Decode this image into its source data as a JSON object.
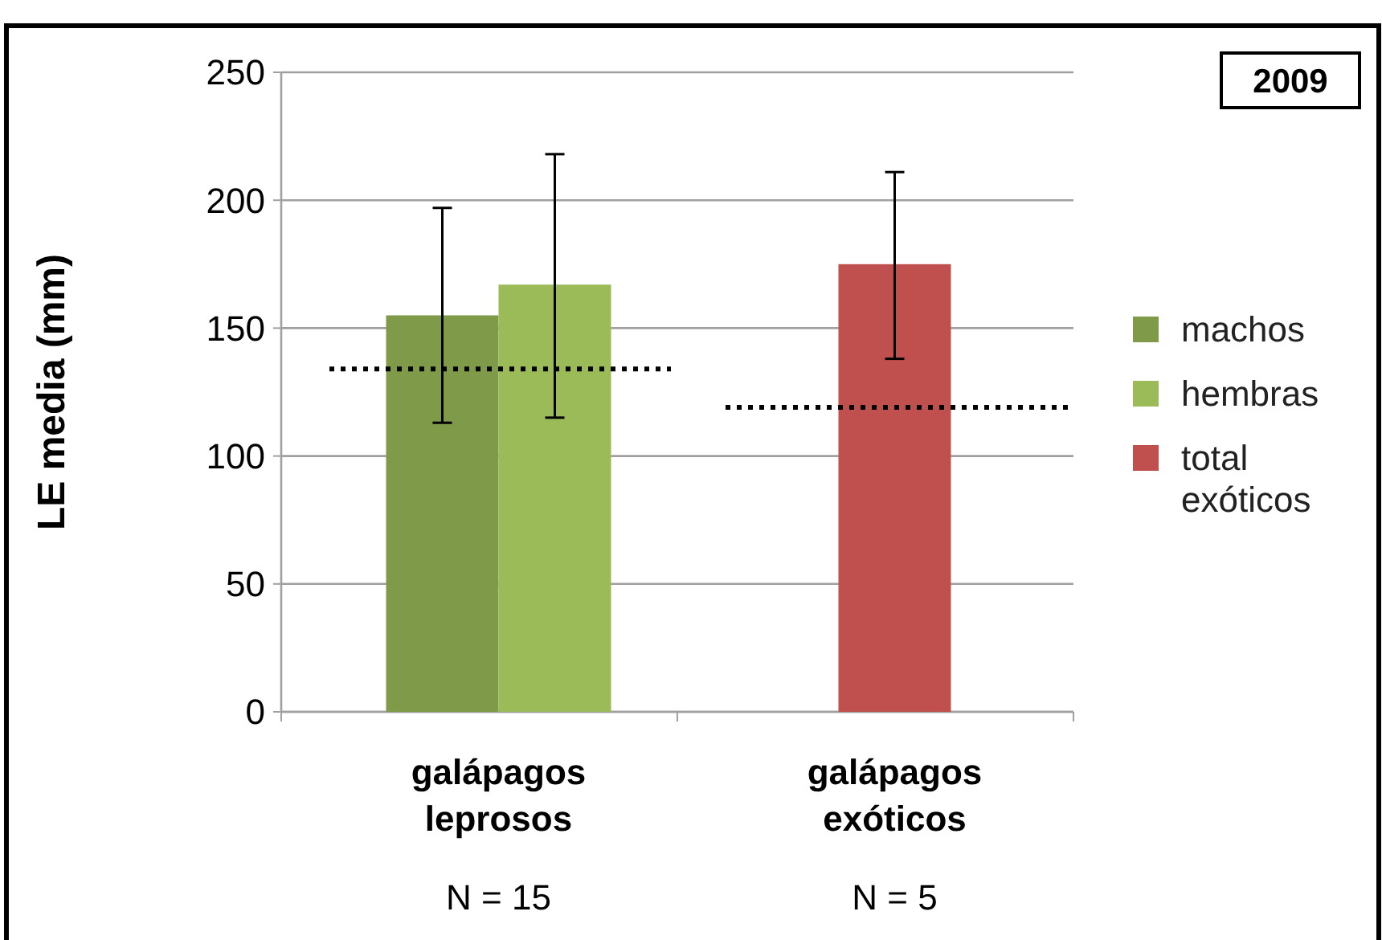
{
  "chart_data": {
    "type": "bar",
    "title": "2009",
    "ylabel": "LE media (mm)",
    "categories": [
      "galápagos leprosos",
      "galápagos exóticos"
    ],
    "series": [
      {
        "name": "machos",
        "color": "#7f9a48",
        "values": [
          155,
          null
        ],
        "errors": [
          [
            113,
            197
          ],
          null
        ]
      },
      {
        "name": "hembras",
        "color": "#9bbb59",
        "values": [
          167,
          null
        ],
        "errors": [
          [
            115,
            218
          ],
          null
        ]
      },
      {
        "name": "total exóticos",
        "color": "#c0504d",
        "values": [
          null,
          175
        ],
        "errors": [
          null,
          [
            138,
            211
          ]
        ]
      }
    ],
    "ylim": [
      0,
      250
    ],
    "yticks": [
      0,
      50,
      100,
      150,
      200,
      250
    ],
    "grid": "y",
    "legend": "right",
    "ref_lines": [
      {
        "axis": "y",
        "value": 134,
        "color": "#000000",
        "line_style": "dotted"
      },
      {
        "axis": "y",
        "value": 119,
        "color": "#000000",
        "line_style": "dotted"
      }
    ],
    "annotations": [
      "N = 15",
      "N = 5"
    ]
  }
}
